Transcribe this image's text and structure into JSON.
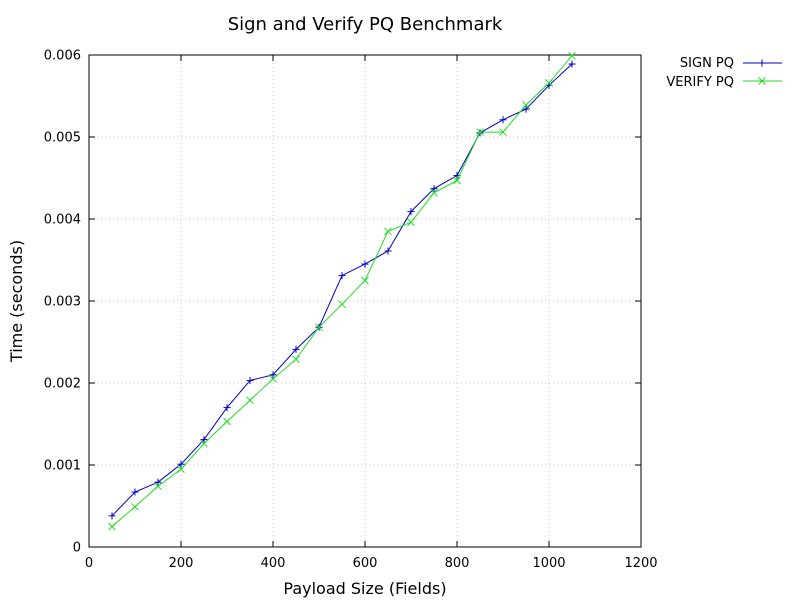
{
  "chart_data": {
    "type": "line",
    "title": "Sign and Verify PQ Benchmark",
    "xlabel": "Payload Size (Fields)",
    "ylabel": "Time (seconds)",
    "xlim": [
      0,
      1200
    ],
    "ylim": [
      0,
      0.006
    ],
    "x_ticks": [
      0,
      200,
      400,
      600,
      800,
      1000,
      1200
    ],
    "x_tick_labels": [
      "0",
      "200",
      "400",
      "600",
      "800",
      "1000",
      "1200"
    ],
    "y_ticks": [
      0,
      0.001,
      0.002,
      0.003,
      0.004,
      0.005,
      0.006
    ],
    "y_tick_labels": [
      "0",
      "0.001",
      "0.002",
      "0.003",
      "0.004",
      "0.005",
      "0.006"
    ],
    "grid": true,
    "legend_position": "outside-top-right",
    "x": [
      50,
      100,
      150,
      200,
      250,
      300,
      350,
      400,
      450,
      500,
      550,
      600,
      650,
      700,
      750,
      800,
      850,
      900,
      950,
      1000,
      1050
    ],
    "series": [
      {
        "name": "SIGN PQ",
        "color": "#0000c8",
        "marker": "plus",
        "values": [
          0.00038,
          0.00067,
          0.00079,
          0.00101,
          0.00131,
          0.0017,
          0.00203,
          0.0021,
          0.00241,
          0.00268,
          0.00331,
          0.00345,
          0.00361,
          0.00409,
          0.00437,
          0.00453,
          0.00505,
          0.00521,
          0.00534,
          0.00563,
          0.00589
        ]
      },
      {
        "name": "VERIFY PQ",
        "color": "#22dd22",
        "marker": "cross",
        "values": [
          0.00025,
          0.00049,
          0.00074,
          0.00095,
          0.00126,
          0.00153,
          0.00179,
          0.00205,
          0.00229,
          0.00268,
          0.00296,
          0.00325,
          0.00385,
          0.00396,
          0.00432,
          0.00447,
          0.00506,
          0.00506,
          0.00539,
          0.00566,
          0.00599
        ]
      }
    ]
  }
}
